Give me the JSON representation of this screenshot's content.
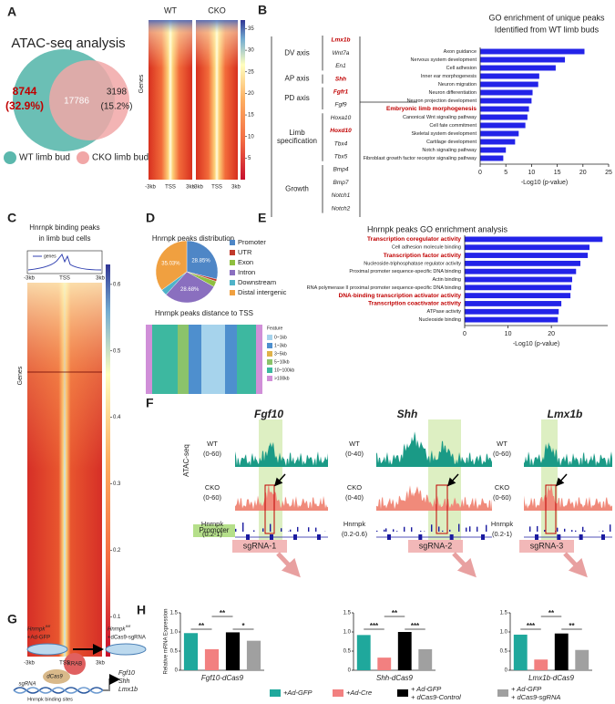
{
  "panel_labels": [
    "A",
    "B",
    "C",
    "D",
    "E",
    "F",
    "G",
    "H"
  ],
  "venn": {
    "title": "ATAC-seq analysis",
    "wt_only": "8744",
    "wt_only_pct": "(32.9%)",
    "shared": "17786",
    "cko_only": "3198",
    "cko_only_pct": "(15.2%)",
    "legend": [
      "WT limb bud",
      "CKO limb bud"
    ]
  },
  "heatmap_a": {
    "columns": [
      "WT",
      "CKO"
    ],
    "ylabel": "Genes",
    "xlabels": [
      "-3kb",
      "TSS",
      "3kb"
    ],
    "clim": [
      0,
      37
    ],
    "cticks": [
      5,
      10,
      15,
      20,
      25,
      30,
      35
    ]
  },
  "go_genes": {
    "groups": [
      {
        "label": [
          "DV axis"
        ],
        "genes": [
          {
            "name": "Lmx1b",
            "red": true
          },
          {
            "name": "Wnt7a",
            "red": false
          },
          {
            "name": "En1",
            "red": false
          }
        ]
      },
      {
        "label": [
          "AP axis"
        ],
        "genes": [
          {
            "name": "Shh",
            "red": true
          }
        ]
      },
      {
        "label": [
          "PD axis"
        ],
        "genes": [
          {
            "name": "Fgfr1",
            "red": true
          },
          {
            "name": "Fgf9",
            "red": false
          }
        ]
      },
      {
        "label": [
          "Limb",
          "specification"
        ],
        "genes": [
          {
            "name": "Hoxa10",
            "red": false
          },
          {
            "name": "Hoxd10",
            "red": true
          },
          {
            "name": "Tbx4",
            "red": false
          },
          {
            "name": "Tbx5",
            "red": false
          }
        ]
      },
      {
        "label": [
          "Growth"
        ],
        "genes": [
          {
            "name": "Bmp4",
            "red": false
          },
          {
            "name": "Bmp7",
            "red": false
          },
          {
            "name": "Notch1",
            "red": false
          },
          {
            "name": "Notch2",
            "red": false
          }
        ]
      }
    ]
  },
  "heatmap_c": {
    "title": [
      "Hnrnpk binding peaks",
      "in limb bud cells"
    ],
    "legend": "genes",
    "ylabel": "Genes",
    "xlabels": [
      "-3kb",
      "TSS",
      "3kb"
    ],
    "clim": [
      0.04,
      0.63
    ],
    "cticks": [
      0.1,
      0.2,
      0.3,
      0.4,
      0.5,
      0.6
    ]
  },
  "distance": {
    "title": "Hnrnpk peaks distance to TSS",
    "legend_title": "Feature",
    "legend": [
      {
        "label": "0~1kb",
        "color": "#a6d3ec"
      },
      {
        "label": "1~3kb",
        "color": "#4e8fce"
      },
      {
        "label": "3~5kb",
        "color": "#e0b24a"
      },
      {
        "label": "5~10kb",
        "color": "#8bc36b"
      },
      {
        "label": "10~100kb",
        "color": "#3db8a0"
      },
      {
        "label": ">100kb",
        "color": "#d08fd8"
      }
    ]
  },
  "tracks": {
    "ylabel": "ATAC-seq",
    "genes": [
      "Fgf10",
      "Shh",
      "Lmx1b"
    ],
    "labels": [
      [
        [
          "WT",
          "(0-60)"
        ],
        [
          "CKO",
          "(0-60)"
        ],
        [
          "Hnrnpk",
          "(0.2-1)"
        ]
      ],
      [
        [
          "WT",
          "(0-40)"
        ],
        [
          "CKO",
          "(0-40)"
        ],
        [
          "Hnrnpk",
          "(0.2-0.6)"
        ]
      ],
      [
        [
          "WT",
          "(0-60)"
        ],
        [
          "CKO",
          "(0-60)"
        ],
        [
          "Hnrnpk",
          "(0.2-1)"
        ]
      ]
    ],
    "promoter": "Promoter",
    "sgrnas": [
      "sgRNA-1",
      "sgRNA-2",
      "sgRNA-3"
    ]
  },
  "schematic": {
    "before": [
      "Hnrnpk",
      "fl/fl",
      "+Ad-GFP"
    ],
    "after": [
      "Hnrnpk",
      "fl/fl",
      "+dCas9-sgRNA"
    ],
    "krab": "KRAB",
    "dcas9": "dCas9",
    "sgrna": "sgRNA",
    "sites": "Hnrnpk binding sites",
    "targets": [
      "Fgf10",
      "Shh",
      "Lmx1b"
    ]
  },
  "h_legend": [
    {
      "name": [
        "+Ad-GFP"
      ],
      "color": "#1fa89c"
    },
    {
      "name": [
        "+Ad-Cre"
      ],
      "color": "#f28080"
    },
    {
      "name": [
        "+ Ad-GFP",
        "+ dCas9-Control"
      ],
      "color": "#000000"
    },
    {
      "name": [
        "+ Ad-GFP",
        "+ dCas9-sgRNA"
      ],
      "color": "#a0a0a0"
    }
  ],
  "chart_data": [
    {
      "type": "barh",
      "title": [
        "GO enrichment of unique peaks",
        "Identified from WT limb buds"
      ],
      "categories": [
        "Axon guidance",
        "Nervous system development",
        "Cell adhesion",
        "Inner ear morphogenesis",
        "Neuron migration",
        "Neuron differentiation",
        "Neuron projection development",
        "Embryonic limb morphogenesis",
        "Canonical Wnt signaling pathway",
        "Cell fate commitment",
        "Skeletal system development",
        "Cartilage development",
        "Notch signaling pathway",
        "Fibroblast growth factor receptor signaling pathway"
      ],
      "values": [
        20.3,
        16.5,
        14.7,
        11.5,
        11.3,
        10.2,
        10,
        9.5,
        9.2,
        8.8,
        7.5,
        6.8,
        5,
        4.5
      ],
      "color": "#2323e8",
      "highlight_indices": [
        7
      ],
      "highlight_color": "#c00000",
      "xlim": [
        0,
        25
      ],
      "xticks": [
        0,
        5,
        10,
        15,
        20,
        25
      ],
      "xlabel": "-Log10 (p-value)"
    },
    {
      "type": "barh",
      "title": [
        "Hnrnpk peaks GO enrichment analysis"
      ],
      "categories": [
        "Transcription coregulator activity",
        "Cell adhesion molecule binding",
        "Transcription factor activity",
        "Nucleoside-triphosphatase regulator activity",
        "Proximal promoter sequence-specific DNA binding",
        "Actin binding",
        "RNA polymerase II proximal promoter sequence-specific DNA binding",
        "DNA-binding transcription activator activity",
        "Transcription coactivator activity",
        "ATPase activity",
        "Nucleoside binding"
      ],
      "values": [
        31.8,
        28.8,
        28.4,
        26.7,
        25.7,
        24.8,
        24.6,
        24.4,
        22.3,
        21.7,
        21.5
      ],
      "color": "#2323e8",
      "highlight_indices": [
        0,
        2,
        7,
        8
      ],
      "highlight_color": "#c00000",
      "xlim": [
        0,
        33
      ],
      "xticks": [
        0,
        10,
        20
      ],
      "xlabel": "-Log10 (p-value)"
    },
    {
      "type": "pie",
      "title": "Hnrnpk peaks distribution",
      "categories": [
        "Promoter",
        "UTR",
        "Exon",
        "Intron",
        "Downstream",
        "Distal intergenic"
      ],
      "values": [
        28.85,
        1.2,
        3.0,
        28.68,
        3.24,
        35.03
      ],
      "value_labels": [
        "28.85%",
        null,
        null,
        "28.68%",
        null,
        "35.03%"
      ],
      "colors": [
        "#4e86c6",
        "#c0392b",
        "#8fbf3f",
        "#8a6fbf",
        "#4fb3c9",
        "#f0a040"
      ]
    },
    {
      "type": "bar",
      "ylabel": "Relative mRNA Expression",
      "xlabel": "Fgf10-dCas9",
      "values": [
        0.97,
        0.55,
        0.99,
        0.77
      ],
      "ylim": [
        0,
        1.5
      ],
      "yticks": [
        0,
        0.5,
        {
          "value": 1,
          "label": "1.0"
        },
        1.5
      ],
      "annotations": [
        "**",
        "**",
        "*"
      ]
    },
    {
      "type": "bar",
      "xlabel": "Shh-dCas9",
      "values": [
        0.92,
        0.33,
        1.0,
        0.55
      ],
      "ylim": [
        0,
        1.5
      ],
      "yticks": [
        0,
        0.5,
        {
          "value": 1,
          "label": "1.0"
        },
        1.5
      ],
      "annotations": [
        "***",
        "**",
        "***"
      ]
    },
    {
      "type": "bar",
      "xlabel": "Lmx1b-dCas9",
      "values": [
        0.93,
        0.28,
        0.96,
        0.53
      ],
      "ylim": [
        0,
        1.5
      ],
      "yticks": [
        0,
        0.5,
        {
          "value": 1,
          "label": "1.0"
        },
        1.5
      ],
      "annotations": [
        "***",
        "**",
        "**"
      ]
    }
  ]
}
